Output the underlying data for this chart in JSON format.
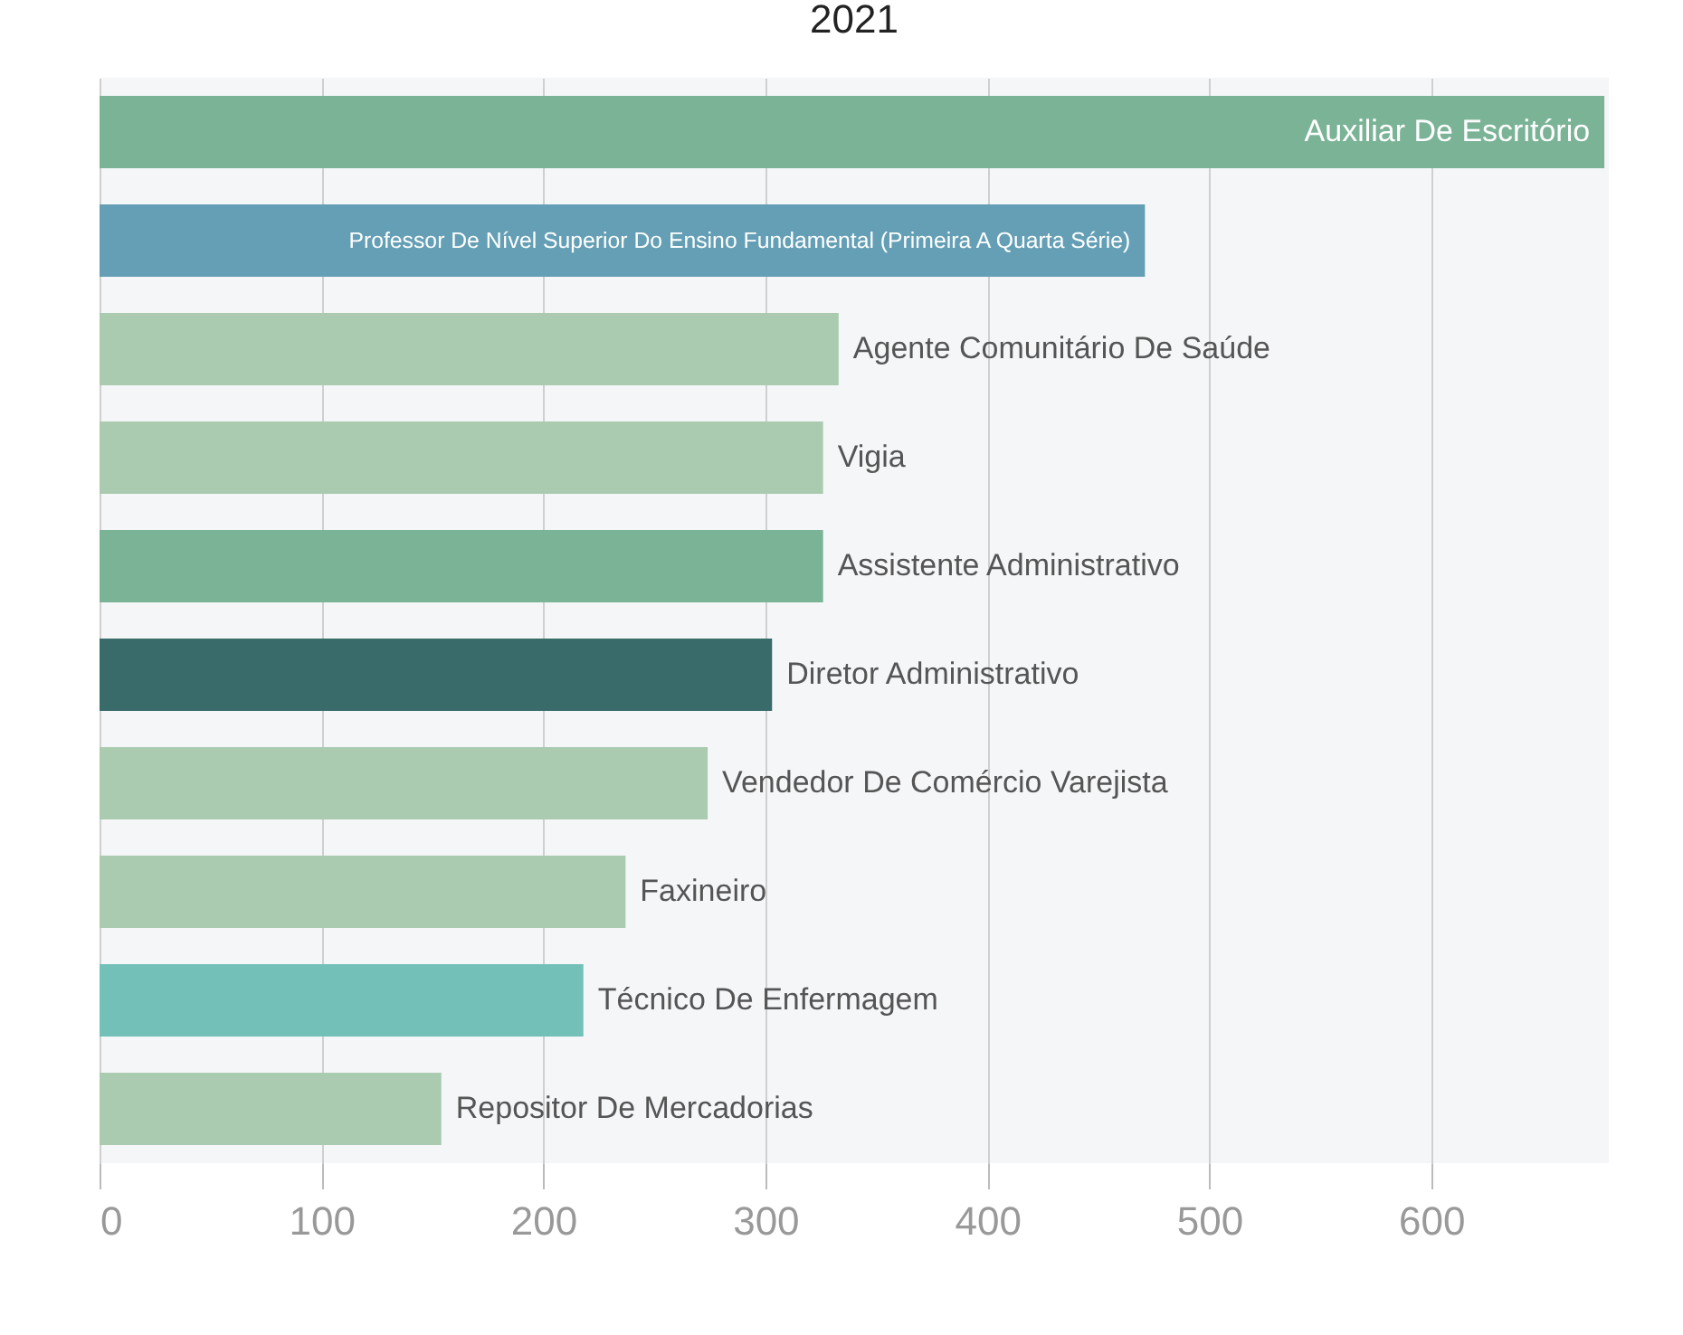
{
  "chart_data": {
    "type": "bar",
    "orientation": "horizontal",
    "title": "2021",
    "categories": [
      "Auxiliar De Escritório",
      "Professor De Nível Superior Do Ensino Fundamental (Primeira A Quarta Série)",
      "Agente Comunitário De Saúde",
      "Vigia",
      "Assistente Administrativo",
      "Diretor Administrativo",
      "Vendedor De Comércio Varejista",
      "Faxineiro",
      "Técnico De Enfermagem",
      "Repositor De Mercadorias"
    ],
    "values": [
      678,
      471,
      333,
      326,
      326,
      303,
      274,
      237,
      218,
      154
    ],
    "colors": [
      "#7bb396",
      "#649fb5",
      "#abcbb0",
      "#abcbb0",
      "#7bb396",
      "#386b6a",
      "#abcbb0",
      "#abcbb0",
      "#73c0b8",
      "#abcbb0"
    ],
    "xlim": [
      0,
      680
    ],
    "xticks": [
      0,
      100,
      200,
      300,
      400,
      500,
      600
    ],
    "grid": "x"
  }
}
